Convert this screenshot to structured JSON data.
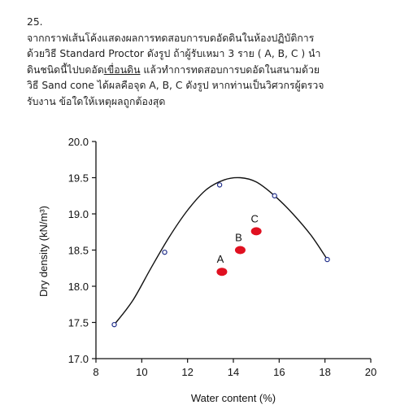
{
  "question": {
    "number": "25.",
    "line1": "จากกราฟเส้นโค้งแสดงผลการทดสอบการบดอัดดินในห้องปฏิบัติการ",
    "line2": "ด้วยวิธี Standard Proctor ดังรูป ถ้าผู้รับเหมา 3 ราย ( A, B, C ) นำ",
    "line3_before": "ดินชนิดนี้ไปบดอัด",
    "line3_underlined": "เขื่อนดิน",
    "line3_after": " แล้วทำการทดสอบการบดอัดในสนามด้วย",
    "line4": "วิธี Sand cone ได้ผลคือจุด A, B, C ดังรูป หากท่านเป็นวิศวกรผู้ตรวจ",
    "line5": "รับงาน ข้อใดให้เหตุผลถูกต้องสุด"
  },
  "chart_data": {
    "type": "scatter",
    "xlabel": "Water content (%)",
    "ylabel": "Dry density (kN/m³)",
    "xlim": [
      8,
      20
    ],
    "ylim": [
      17.0,
      20.0
    ],
    "xticks": [
      "8",
      "10",
      "12",
      "14",
      "16",
      "18",
      "20"
    ],
    "yticks": [
      "17.0",
      "17.5",
      "18.0",
      "18.5",
      "19.0",
      "19.5",
      "20.0"
    ],
    "grid": false,
    "series": [
      {
        "style": "open-circles-with-smooth-curve",
        "color": "#1f2d8a",
        "points": [
          {
            "x": 8.8,
            "y": 17.47
          },
          {
            "x": 11.0,
            "y": 18.47
          },
          {
            "x": 13.4,
            "y": 19.4
          },
          {
            "x": 15.8,
            "y": 19.25
          },
          {
            "x": 18.1,
            "y": 18.37
          }
        ],
        "curve": [
          {
            "x": 8.8,
            "y": 17.47
          },
          {
            "x": 9.6,
            "y": 17.8
          },
          {
            "x": 10.4,
            "y": 18.25
          },
          {
            "x": 11.2,
            "y": 18.68
          },
          {
            "x": 12.0,
            "y": 19.05
          },
          {
            "x": 12.8,
            "y": 19.33
          },
          {
            "x": 13.6,
            "y": 19.47
          },
          {
            "x": 14.3,
            "y": 19.5
          },
          {
            "x": 15.0,
            "y": 19.44
          },
          {
            "x": 15.8,
            "y": 19.25
          },
          {
            "x": 16.6,
            "y": 19.0
          },
          {
            "x": 17.4,
            "y": 18.7
          },
          {
            "x": 18.1,
            "y": 18.37
          }
        ]
      },
      {
        "style": "filled-red-markers",
        "color": "#e01020",
        "points": [
          {
            "label": "A",
            "x": 13.5,
            "y": 18.2
          },
          {
            "label": "B",
            "x": 14.3,
            "y": 18.5
          },
          {
            "label": "C",
            "x": 15.0,
            "y": 18.76
          }
        ]
      }
    ]
  }
}
